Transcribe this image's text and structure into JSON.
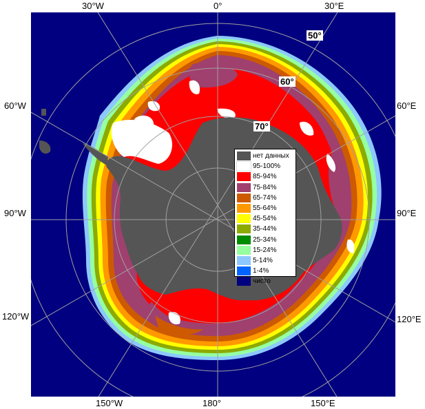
{
  "meridian_labels": {
    "top": [
      "30°W",
      "0°",
      "30°E"
    ],
    "left": [
      "60°W",
      "90°W",
      "120°W"
    ],
    "right": [
      "60°E",
      "90°E",
      "120°E"
    ],
    "bottom": [
      "150°W",
      "180°",
      "150°E"
    ]
  },
  "parallel_labels": [
    "50°",
    "60°",
    "70°"
  ],
  "legend": [
    {
      "label": "нет данных",
      "color": "#555555"
    },
    {
      "label": "95-100%",
      "color": "#ffffff"
    },
    {
      "label": "85-94%",
      "color": "#ff0000"
    },
    {
      "label": "75-84%",
      "color": "#a0406e"
    },
    {
      "label": "65-74%",
      "color": "#cd5a00"
    },
    {
      "label": "55-64%",
      "color": "#ff9900"
    },
    {
      "label": "45-54%",
      "color": "#ffff00"
    },
    {
      "label": "35-44%",
      "color": "#8caa00"
    },
    {
      "label": "25-34%",
      "color": "#008c00"
    },
    {
      "label": "15-24%",
      "color": "#96ffa0"
    },
    {
      "label": "5-14%",
      "color": "#8cc8ff"
    },
    {
      "label": "1-4%",
      "color": "#0064ff"
    },
    {
      "label": "чисто",
      "color": "#000080"
    }
  ],
  "colors": {
    "open_water": "#000080",
    "land": "#555555",
    "graticule": "#a0a0a0"
  }
}
